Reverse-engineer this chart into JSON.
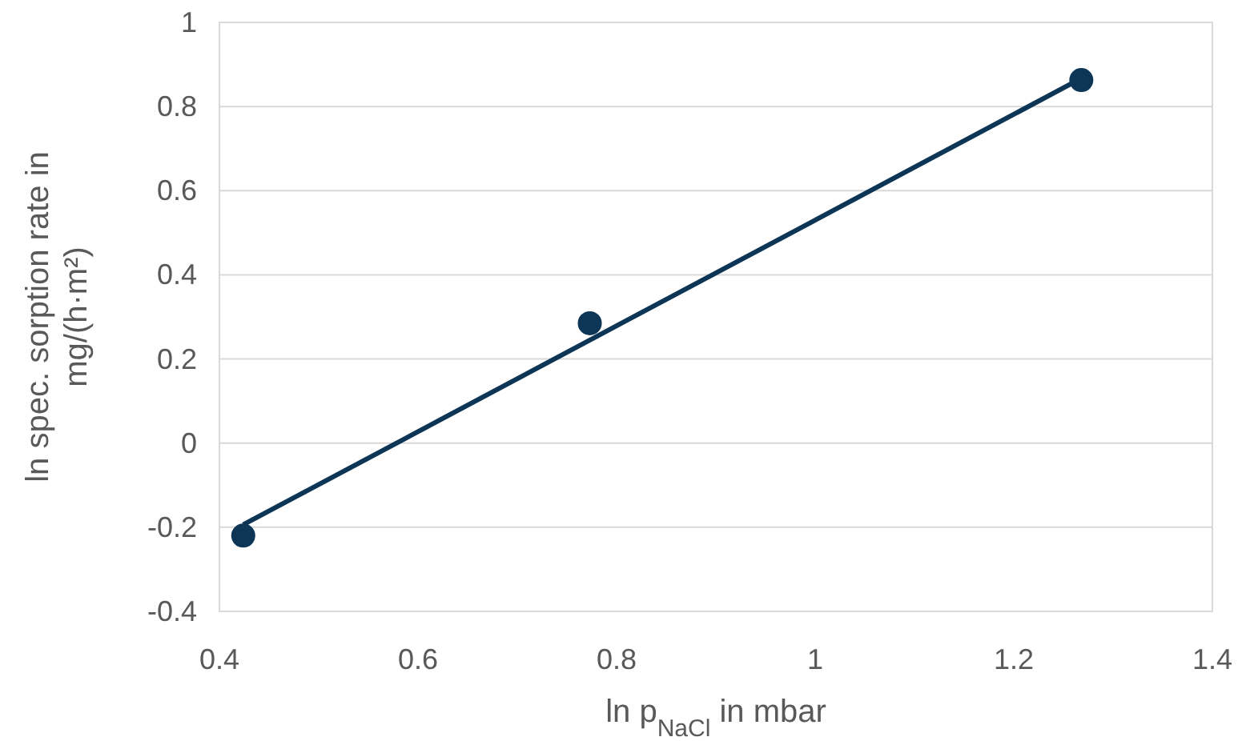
{
  "chart_data": {
    "type": "scatter",
    "xlabel": "ln p$_{NaCl}$ in mbar",
    "ylabel": "ln spec. sorption rate in mg/(h·m²)",
    "xlim": [
      0.4,
      1.4
    ],
    "xticks": [
      0.4,
      0.6,
      0.8,
      {
        "value": 1,
        "label": "1"
      },
      1.2,
      1.4
    ],
    "ylim": [
      -0.4,
      1
    ],
    "yticks": [
      -0.4,
      -0.2,
      0,
      0.2,
      0.4,
      0.6,
      0.8,
      1
    ],
    "grid": "y",
    "marker": "circle",
    "series": [
      {
        "color": "#0d3556",
        "x": [
          0.424,
          0.773,
          1.268
        ],
        "values": [
          -0.22,
          0.285,
          0.863
        ]
      },
      {
        "type": "line",
        "color": "#0d3556",
        "x": [
          0.424,
          1.268
        ],
        "values": [
          -0.194,
          0.867
        ],
        "marker": "none"
      }
    ]
  }
}
